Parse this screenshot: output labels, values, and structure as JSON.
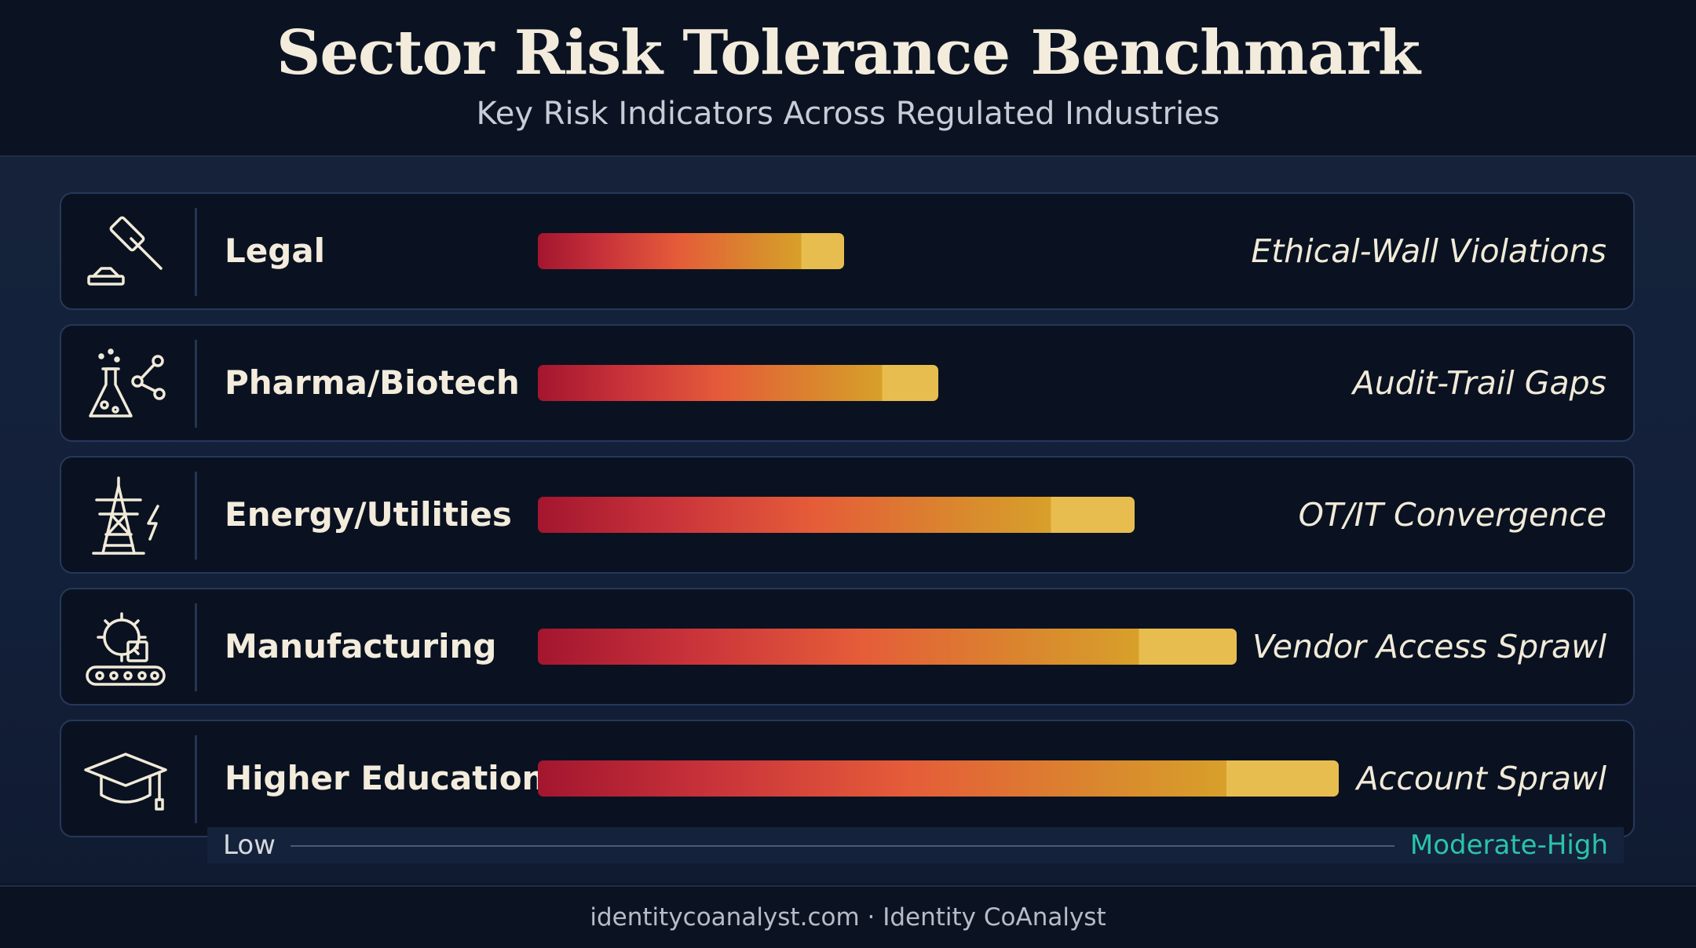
{
  "header": {
    "title": "Sector Risk Tolerance Benchmark",
    "subtitle": "Key Risk Indicators Across Regulated Industries"
  },
  "chart_data": {
    "type": "bar",
    "orientation": "horizontal",
    "categories": [
      "Legal",
      "Pharma/Biotech",
      "Energy/Utilities",
      "Manufacturing",
      "Higher Education"
    ],
    "values": [
      0.39,
      0.51,
      0.76,
      0.89,
      1.02
    ],
    "annotations": [
      "Ethical-Wall Violations",
      "Audit-Trail Gaps",
      "OT/IT Convergence",
      "Vendor Access Sprawl",
      "Account Sprawl"
    ],
    "icons": [
      "gavel-icon",
      "flask-molecule-icon",
      "power-tower-icon",
      "factory-conveyor-icon",
      "graduation-cap-icon"
    ],
    "scale": {
      "low_label": "Low",
      "high_label": "Moderate-High"
    },
    "colors": {
      "bar_start": "#a3162f",
      "bar_mid": "#e55c39",
      "bar_end": "#e8bd4f",
      "high_label": "#2bc3aa"
    },
    "grid": false,
    "legend": "none"
  },
  "footer": {
    "text": "identitycoanalyst.com · Identity CoAnalyst"
  }
}
